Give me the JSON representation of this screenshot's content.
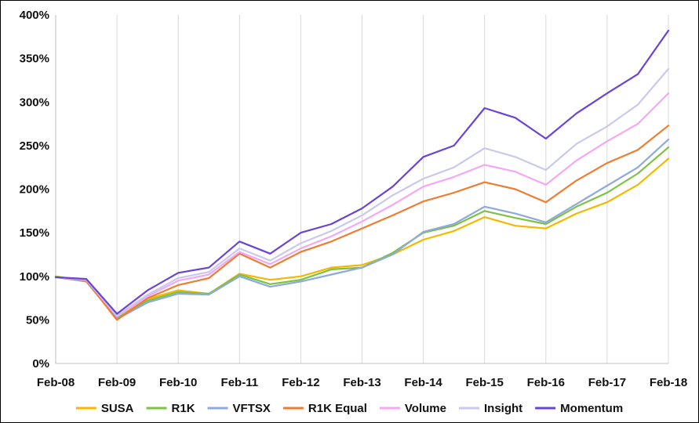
{
  "chart_data": {
    "type": "line",
    "title": "",
    "xlabel": "",
    "ylabel": "",
    "x_ticks": [
      "Feb-08",
      "Feb-09",
      "Feb-10",
      "Feb-11",
      "Feb-12",
      "Feb-13",
      "Feb-14",
      "Feb-15",
      "Feb-16",
      "Feb-17",
      "Feb-18"
    ],
    "y_ticks": [
      "0%",
      "50%",
      "100%",
      "150%",
      "200%",
      "250%",
      "300%",
      "350%",
      "400%"
    ],
    "ylim": [
      0,
      400
    ],
    "xlim": [
      "Feb-08",
      "Feb-18"
    ],
    "grid": "vertical",
    "legend_position": "bottom",
    "x": [
      "Feb-08",
      "Aug-08",
      "Feb-09",
      "Aug-09",
      "Feb-10",
      "Aug-10",
      "Feb-11",
      "Aug-11",
      "Feb-12",
      "Aug-12",
      "Feb-13",
      "Aug-13",
      "Feb-14",
      "Aug-14",
      "Feb-15",
      "Aug-15",
      "Feb-16",
      "Aug-16",
      "Feb-17",
      "Aug-17",
      "Feb-18"
    ],
    "series": [
      {
        "name": "SUSA",
        "color": "#F5B800",
        "values": [
          100,
          95,
          53,
          74,
          84,
          80,
          103,
          96,
          100,
          110,
          113,
          125,
          142,
          152,
          168,
          158,
          155,
          172,
          185,
          205,
          235
        ]
      },
      {
        "name": "R1K",
        "color": "#7DC243",
        "values": [
          100,
          94,
          52,
          72,
          82,
          80,
          102,
          91,
          96,
          108,
          110,
          127,
          150,
          158,
          175,
          167,
          160,
          180,
          196,
          218,
          248
        ]
      },
      {
        "name": "VFTSX",
        "color": "#8EA9DB",
        "values": [
          99,
          94,
          51,
          70,
          80,
          79,
          100,
          88,
          94,
          102,
          110,
          125,
          151,
          160,
          180,
          172,
          162,
          183,
          204,
          225,
          257
        ]
      },
      {
        "name": "R1K Equal",
        "color": "#ED7D31",
        "values": [
          99,
          95,
          50,
          75,
          90,
          98,
          126,
          110,
          128,
          140,
          155,
          170,
          186,
          196,
          208,
          200,
          185,
          210,
          230,
          245,
          273
        ]
      },
      {
        "name": "Volume",
        "color": "#F4A7F4",
        "values": [
          99,
          96,
          54,
          77,
          95,
          102,
          128,
          114,
          132,
          146,
          163,
          182,
          203,
          214,
          228,
          220,
          205,
          233,
          255,
          275,
          310
        ]
      },
      {
        "name": "Insight",
        "color": "#C9C9EE",
        "values": [
          99,
          96,
          55,
          79,
          98,
          105,
          132,
          118,
          138,
          152,
          170,
          193,
          212,
          225,
          247,
          237,
          222,
          252,
          272,
          297,
          338
        ]
      },
      {
        "name": "Momentum",
        "color": "#6A44D6",
        "values": [
          99,
          97,
          57,
          84,
          104,
          110,
          140,
          126,
          150,
          160,
          178,
          203,
          237,
          250,
          293,
          282,
          258,
          287,
          310,
          332,
          382
        ]
      }
    ]
  }
}
